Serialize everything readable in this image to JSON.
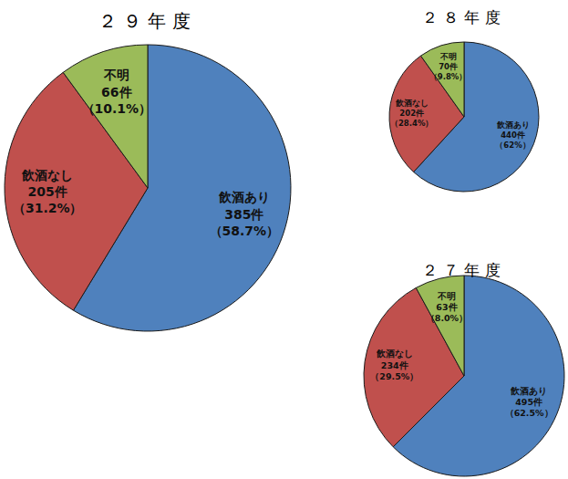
{
  "chart_data": [
    {
      "type": "pie",
      "title": "２９年度",
      "categories": [
        "飲酒あり",
        "飲酒なし",
        "不明"
      ],
      "values": [
        385,
        205,
        66
      ],
      "value_labels": [
        "385件",
        "205件",
        "66件"
      ],
      "percents": [
        58.7,
        31.2,
        10.1
      ],
      "percent_labels": [
        "（58.7%）",
        "（31.2%）",
        "（10.1%）"
      ],
      "colors": [
        "#4f81bd",
        "#c0504d",
        "#9bbb59"
      ],
      "data_labels": true
    },
    {
      "type": "pie",
      "title": "２８年度",
      "categories": [
        "飲酒あり",
        "飲酒なし",
        "不明"
      ],
      "values": [
        440,
        202,
        70
      ],
      "value_labels": [
        "440件",
        "202件",
        "70件"
      ],
      "percents": [
        62,
        28.4,
        9.8
      ],
      "percent_labels": [
        "（62%）",
        "（28.4%）",
        "（9.8%）"
      ],
      "colors": [
        "#4f81bd",
        "#c0504d",
        "#9bbb59"
      ],
      "data_labels": true
    },
    {
      "type": "pie",
      "title": "２７年度",
      "categories": [
        "飲酒あり",
        "飲酒なし",
        "不明"
      ],
      "values": [
        495,
        234,
        63
      ],
      "value_labels": [
        "495件",
        "234件",
        "63件"
      ],
      "percents": [
        62.5,
        29.5,
        8.0
      ],
      "percent_labels": [
        "（62.5%）",
        "（29.5%）",
        "（8.0%）"
      ],
      "colors": [
        "#4f81bd",
        "#c0504d",
        "#9bbb59"
      ],
      "data_labels": true
    }
  ]
}
